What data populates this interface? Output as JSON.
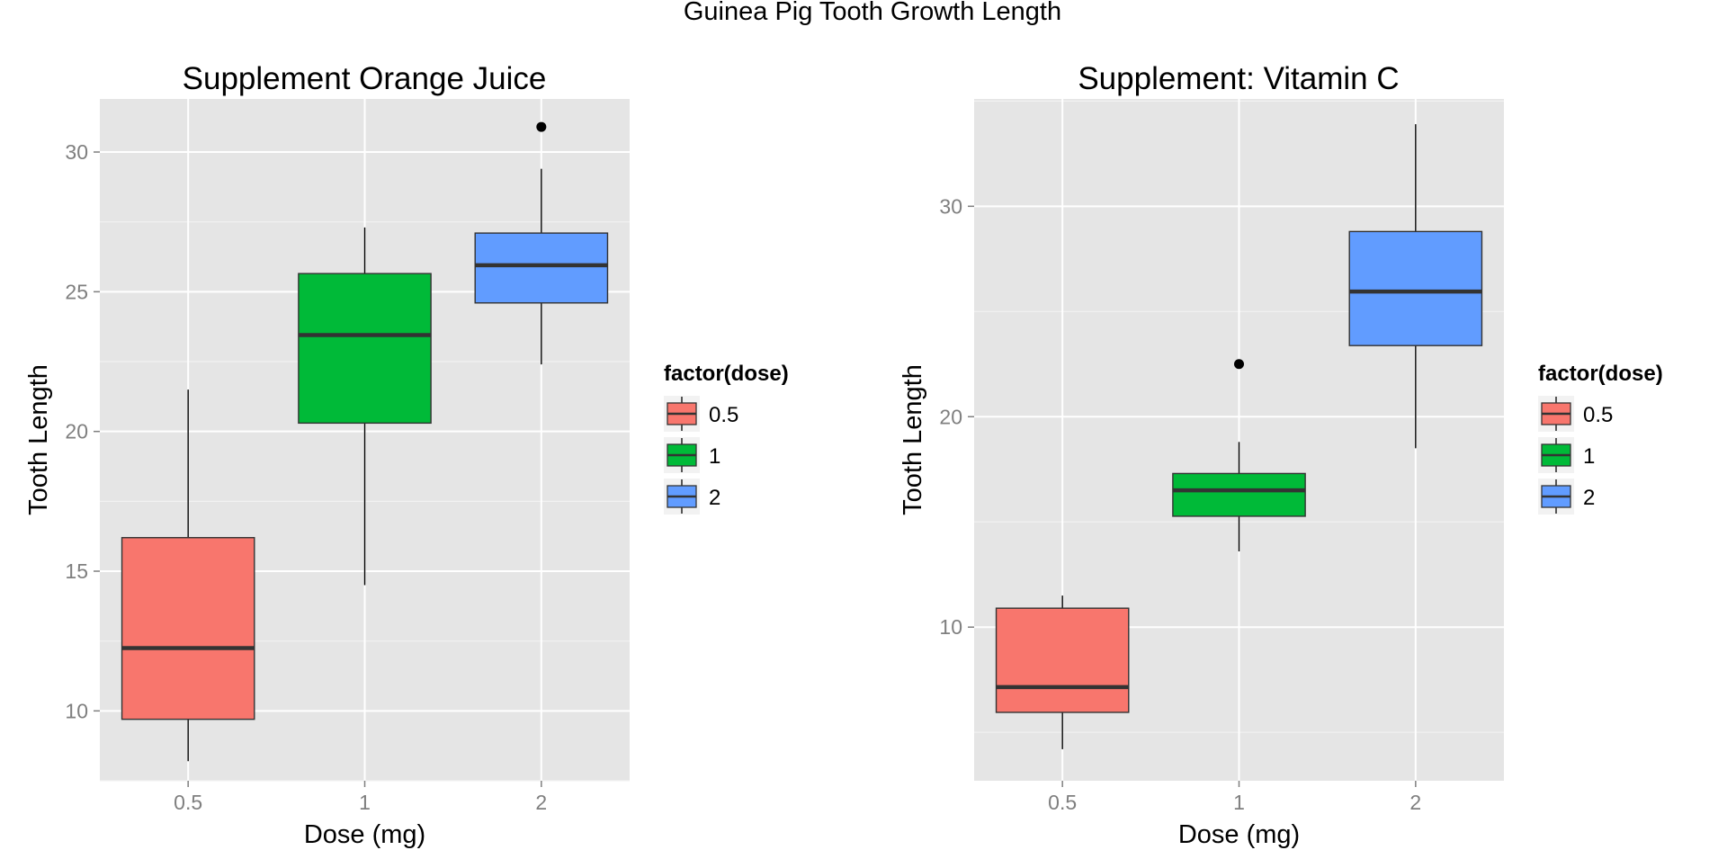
{
  "figure": {
    "title": "Guinea Pig Tooth Growth Length"
  },
  "colors": {
    "panel_bg": "#E5E5E5",
    "grid": "#FFFFFF",
    "tick_text": "#7F7F7F",
    "dose_0_5": "#F8766D",
    "dose_1": "#00BA38",
    "dose_2": "#619CFF",
    "median": "#333333"
  },
  "chart_data": [
    {
      "type": "box",
      "title": "Supplement Orange Juice",
      "xlabel": "Dose (mg)",
      "ylabel": "Tooth Length",
      "ylim": [
        7.5,
        31.9
      ],
      "yticks": [
        10,
        15,
        20,
        25,
        30
      ],
      "categories": [
        "0.5",
        "1",
        "2"
      ],
      "grid": true,
      "legend": {
        "title": "factor(dose)",
        "placement": "right",
        "entries": [
          "0.5",
          "1",
          "2"
        ]
      },
      "boxes": [
        {
          "category": "0.5",
          "min": 8.2,
          "q1": 9.7,
          "median": 12.25,
          "q3": 16.2,
          "max": 21.5,
          "outliers": []
        },
        {
          "category": "1",
          "min": 14.5,
          "q1": 20.3,
          "median": 23.45,
          "q3": 25.65,
          "max": 27.3,
          "outliers": []
        },
        {
          "category": "2",
          "min": 22.4,
          "q1": 24.6,
          "median": 25.95,
          "q3": 27.1,
          "max": 29.4,
          "outliers": [
            30.9
          ]
        }
      ]
    },
    {
      "type": "box",
      "title": "Supplement: Vitamin C",
      "xlabel": "Dose (mg)",
      "ylabel": "Tooth Length",
      "ylim": [
        2.7,
        35.1
      ],
      "yticks": [
        10,
        20,
        30
      ],
      "categories": [
        "0.5",
        "1",
        "2"
      ],
      "grid": true,
      "legend": {
        "title": "factor(dose)",
        "placement": "right",
        "entries": [
          "0.5",
          "1",
          "2"
        ]
      },
      "boxes": [
        {
          "category": "0.5",
          "min": 4.2,
          "q1": 5.95,
          "median": 7.15,
          "q3": 10.9,
          "max": 11.5,
          "outliers": []
        },
        {
          "category": "1",
          "min": 13.6,
          "q1": 15.27,
          "median": 16.5,
          "q3": 17.3,
          "max": 18.8,
          "outliers": [
            22.5
          ]
        },
        {
          "category": "2",
          "min": 18.5,
          "q1": 23.38,
          "median": 25.95,
          "q3": 28.8,
          "max": 33.9,
          "outliers": []
        }
      ]
    }
  ]
}
